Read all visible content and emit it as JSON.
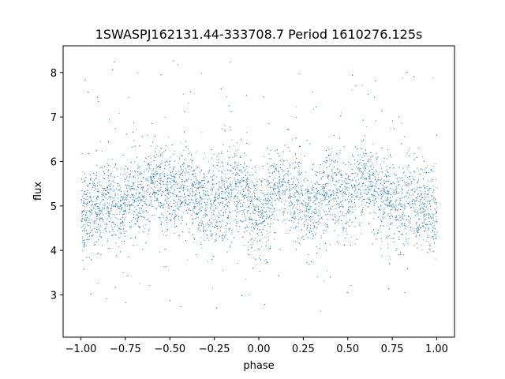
{
  "chart_data": {
    "type": "scatter",
    "title": "1SWASPJ162131.44-333708.7 Period 1610276.125s",
    "xlabel": "phase",
    "ylabel": "flux",
    "xlim": [
      -1.1,
      1.1
    ],
    "ylim": [
      2.05,
      8.6
    ],
    "xticks": [
      "−1.00",
      "−0.75",
      "−0.50",
      "−0.25",
      "0.00",
      "0.25",
      "0.50",
      "0.75",
      "1.00"
    ],
    "xtick_values": [
      -1.0,
      -0.75,
      -0.5,
      -0.25,
      0.0,
      0.25,
      0.5,
      0.75,
      1.0
    ],
    "yticks": [
      "3",
      "4",
      "5",
      "6",
      "7",
      "8"
    ],
    "ytick_values": [
      3,
      4,
      5,
      6,
      7,
      8
    ],
    "grid": false,
    "point_color": "#1f77b4",
    "series": [
      {
        "phase_profile": [
          {
            "x": 0.0,
            "y": 4.8
          },
          {
            "x": 0.05,
            "y": 5.0
          },
          {
            "x": 0.1,
            "y": 5.4
          },
          {
            "x": 0.15,
            "y": 5.3
          },
          {
            "x": 0.2,
            "y": 5.2
          },
          {
            "x": 0.25,
            "y": 5.1
          },
          {
            "x": 0.3,
            "y": 5.0
          },
          {
            "x": 0.35,
            "y": 5.2
          },
          {
            "x": 0.4,
            "y": 5.4
          },
          {
            "x": 0.45,
            "y": 5.3
          },
          {
            "x": 0.5,
            "y": 5.2
          },
          {
            "x": 0.55,
            "y": 5.5
          },
          {
            "x": 0.6,
            "y": 5.6
          },
          {
            "x": 0.65,
            "y": 5.3
          },
          {
            "x": 0.7,
            "y": 5.2
          },
          {
            "x": 0.75,
            "y": 5.1
          },
          {
            "x": 0.8,
            "y": 4.9
          },
          {
            "x": 0.85,
            "y": 5.1
          },
          {
            "x": 0.9,
            "y": 5.0
          },
          {
            "x": 0.95,
            "y": 4.9
          },
          {
            "x": 1.0,
            "y": 4.8
          }
        ]
      }
    ]
  }
}
